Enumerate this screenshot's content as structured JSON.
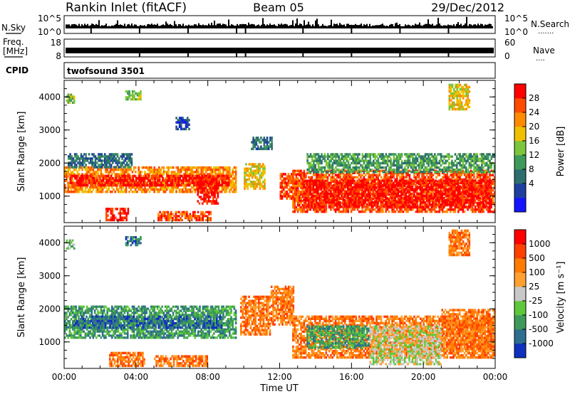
{
  "header": {
    "station": "Rankin Inlet (fitACF)",
    "beam": "Beam 05",
    "date": "29/Dec/2012"
  },
  "strips": {
    "nsky_label": "N.Sky",
    "nsearch_label": "N.Search",
    "nsearch_dots": "·······",
    "nsky_ticks": [
      "10^5",
      "10^0"
    ],
    "freq_label_1": "Freq.",
    "freq_label_2": "[MHz]",
    "freq_ticks": [
      "18",
      "8"
    ],
    "nave_label": "Nave",
    "nave_dots": "····",
    "nave_ticks": [
      "60",
      "0"
    ],
    "cpid_label": "CPID",
    "cpid_value": "twofsound 3501"
  },
  "chart_data": [
    {
      "type": "heatmap",
      "name": "power",
      "ylabel": "Slant Range [km]",
      "xlabel": "Time UT",
      "xlim_hours": [
        0,
        24
      ],
      "ylim_km": [
        200,
        4500
      ],
      "x_ticks": [
        "00:00",
        "04:00",
        "08:00",
        "12:00",
        "16:00",
        "20:00",
        "00:00"
      ],
      "y_ticks": [
        "1000",
        "2000",
        "3000",
        "4000"
      ],
      "colorbar_label": "Power [dB]",
      "colorbar_ticks": [
        "28",
        "24",
        "20",
        "16",
        "12",
        "8",
        "4"
      ],
      "colors": [
        "#1414ff",
        "#1e3fa0",
        "#2e6e6e",
        "#3e9a5a",
        "#7cc63c",
        "#f0c000",
        "#ff8a00",
        "#ff4a00",
        "#ff0000"
      ],
      "regions": [
        {
          "t0": 0.0,
          "t1": 9.6,
          "r0": 1100,
          "r1": 1900,
          "level": 6
        },
        {
          "t0": 0.3,
          "t1": 9.2,
          "r0": 1300,
          "r1": 1650,
          "level": 8
        },
        {
          "t0": 2.3,
          "t1": 3.6,
          "r0": 250,
          "r1": 650,
          "level": 8
        },
        {
          "t0": 5.2,
          "t1": 8.2,
          "r0": 250,
          "r1": 550,
          "level": 7
        },
        {
          "t0": 7.4,
          "t1": 8.6,
          "r0": 750,
          "r1": 1600,
          "level": 8
        },
        {
          "t0": 10.0,
          "t1": 11.2,
          "r0": 1200,
          "r1": 2000,
          "level": 5
        },
        {
          "t0": 12.0,
          "t1": 13.5,
          "r0": 900,
          "r1": 1700,
          "level": 7
        },
        {
          "t0": 12.7,
          "t1": 24.0,
          "r0": 500,
          "r1": 1800,
          "level": 7
        },
        {
          "t0": 13.3,
          "t1": 23.8,
          "r0": 650,
          "r1": 1500,
          "level": 8
        },
        {
          "t0": 13.5,
          "t1": 24.0,
          "r0": 1700,
          "r1": 2300,
          "level": 3
        },
        {
          "t0": 0.2,
          "t1": 3.8,
          "r0": 1850,
          "r1": 2300,
          "level": 2
        },
        {
          "t0": 3.4,
          "t1": 4.3,
          "r0": 3900,
          "r1": 4200,
          "level": 4
        },
        {
          "t0": 0.1,
          "t1": 0.6,
          "r0": 3800,
          "r1": 4100,
          "level": 4
        },
        {
          "t0": 21.4,
          "t1": 22.6,
          "r0": 3600,
          "r1": 4400,
          "level": 5
        },
        {
          "t0": 10.4,
          "t1": 11.6,
          "r0": 2400,
          "r1": 2800,
          "level": 2
        },
        {
          "t0": 6.2,
          "t1": 7.0,
          "r0": 3000,
          "r1": 3400,
          "level": 1
        }
      ]
    },
    {
      "type": "heatmap",
      "name": "velocity",
      "ylabel": "Slant Range [km]",
      "xlabel": "Time UT",
      "xlim_hours": [
        0,
        24
      ],
      "ylim_km": [
        200,
        4500
      ],
      "x_ticks": [
        "00:00",
        "04:00",
        "08:00",
        "12:00",
        "16:00",
        "20:00",
        "00:00"
      ],
      "y_ticks": [
        "1000",
        "2000",
        "3000",
        "4000"
      ],
      "colorbar_label": "Velocity [m s⁻¹]",
      "colorbar_ticks": [
        "1000",
        "500",
        "100",
        "25",
        "-25",
        "-100",
        "-500",
        "-1000"
      ],
      "colors": [
        "#1030c0",
        "#2e6e8e",
        "#3e9a5a",
        "#5ec83c",
        "#c8c8c8",
        "#ffa030",
        "#ff7a00",
        "#ff4000",
        "#ff0000"
      ],
      "regions": [
        {
          "t0": 0.0,
          "t1": 9.6,
          "r0": 1100,
          "r1": 2100,
          "level": 2
        },
        {
          "t0": 0.5,
          "t1": 8.8,
          "r0": 1400,
          "r1": 1800,
          "level": 1
        },
        {
          "t0": 2.5,
          "t1": 4.5,
          "r0": 250,
          "r1": 700,
          "level": 6
        },
        {
          "t0": 5.0,
          "t1": 8.0,
          "r0": 250,
          "r1": 600,
          "level": 6
        },
        {
          "t0": 9.8,
          "t1": 11.5,
          "r0": 1200,
          "r1": 2400,
          "level": 6
        },
        {
          "t0": 11.5,
          "t1": 12.8,
          "r0": 1500,
          "r1": 2700,
          "level": 6
        },
        {
          "t0": 12.7,
          "t1": 24.0,
          "r0": 500,
          "r1": 1800,
          "level": 6
        },
        {
          "t0": 13.5,
          "t1": 17.0,
          "r0": 800,
          "r1": 1500,
          "level": 2
        },
        {
          "t0": 17.0,
          "t1": 21.0,
          "r0": 300,
          "r1": 1500,
          "level": 4
        },
        {
          "t0": 21.0,
          "t1": 24.0,
          "r0": 700,
          "r1": 2000,
          "level": 6
        },
        {
          "t0": 3.4,
          "t1": 4.3,
          "r0": 3900,
          "r1": 4200,
          "level": 1
        },
        {
          "t0": 21.4,
          "t1": 22.6,
          "r0": 3600,
          "r1": 4400,
          "level": 6
        },
        {
          "t0": 0.1,
          "t1": 0.6,
          "r0": 3800,
          "r1": 4100,
          "level": 3
        }
      ]
    }
  ]
}
